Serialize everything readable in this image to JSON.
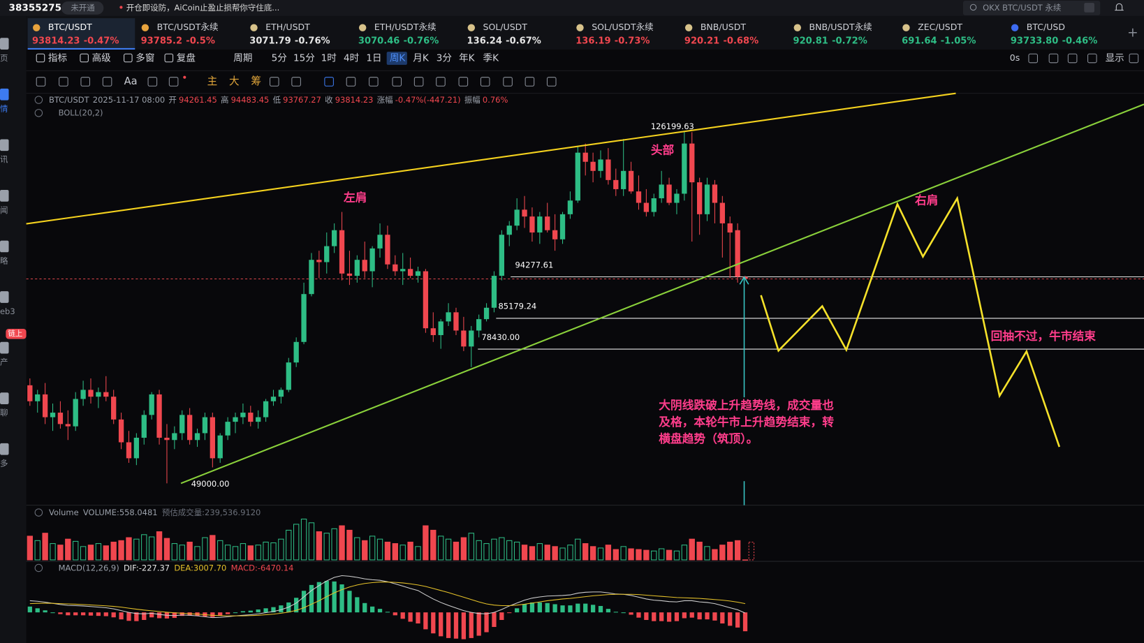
{
  "top_bar": {
    "account": "38355275",
    "badge": "未开通",
    "notice": "开仓即设防，AiCoin止盈止损帮你守住底...",
    "search": "OKX BTC/USDT 永续"
  },
  "tickers": [
    {
      "name": "BTC/USDT",
      "price": "93814.23",
      "change": "-0.47%",
      "color": "#f0474f",
      "icon_color": "#e8a33d"
    },
    {
      "name": "BTC/USDT永续",
      "price": "93785.2",
      "change": "-0.5%",
      "color": "#f0474f",
      "icon_color": "#e8a33d"
    },
    {
      "name": "ETH/USDT",
      "price": "3071.79",
      "change": "-0.76%",
      "color": "#e6e6e6",
      "icon_color": "#d7c28a"
    },
    {
      "name": "ETH/USDT永续",
      "price": "3070.46",
      "change": "-0.76%",
      "color": "#2ebd85",
      "icon_color": "#d7c28a"
    },
    {
      "name": "SOL/USDT",
      "price": "136.24",
      "change": "-0.67%",
      "color": "#e6e6e6",
      "icon_color": "#d7c28a"
    },
    {
      "name": "SOL/USDT永续",
      "price": "136.19",
      "change": "-0.73%",
      "color": "#f0474f",
      "icon_color": "#d7c28a"
    },
    {
      "name": "BNB/USDT",
      "price": "920.21",
      "change": "-0.68%",
      "color": "#f0474f",
      "icon_color": "#d7c28a"
    },
    {
      "name": "BNB/USDT永续",
      "price": "920.81",
      "change": "-0.72%",
      "color": "#2ebd85",
      "icon_color": "#d7c28a"
    },
    {
      "name": "ZEC/USDT",
      "price": "691.64",
      "change": "-1.05%",
      "color": "#2ebd85",
      "icon_color": "#d7c28a"
    },
    {
      "name": "BTC/USD",
      "price": "93733.80",
      "change": "-0.46%",
      "color": "#2ebd85",
      "icon_color": "#3d6bf0"
    }
  ],
  "toolbar": {
    "items": [
      "指标",
      "高级",
      "多窗",
      "复盘",
      "周期",
      "5分",
      "15分",
      "1时",
      "4时",
      "1日",
      "周K",
      "月K",
      "3分",
      "年K",
      "季K"
    ],
    "active": "周K",
    "right": [
      "0s",
      "显示"
    ]
  },
  "drawing_tools": [
    "Aa",
    "主",
    "大",
    "筹"
  ],
  "sidebar": [
    "页",
    "情",
    "讯",
    "闻",
    "略",
    "eb3",
    "产",
    "聊",
    "多"
  ],
  "sidebar_badge": "链上",
  "chart": {
    "type": "candlestick",
    "legend": {
      "symbol": "BTC/USDT",
      "time": "2025-11-17 08:00",
      "open_label": "开",
      "high_label": "高",
      "low_label": "低",
      "close_label": "收",
      "change_label": "涨幅",
      "change": "-0.47%(-447.21)",
      "amplitude_label": "振幅",
      "amplitude": "0.76%",
      "indicator": "BOLL(20,2)"
    },
    "up_color": "#2ebd85",
    "down_color": "#f0474f",
    "candles": [
      [
        70500,
        72000,
        66000,
        67000
      ],
      [
        67000,
        69500,
        64500,
        68500
      ],
      [
        68500,
        71000,
        62000,
        63500
      ],
      [
        63500,
        66500,
        60500,
        64500
      ],
      [
        64500,
        67000,
        61000,
        62000
      ],
      [
        62000,
        65000,
        58500,
        61500
      ],
      [
        61500,
        69000,
        60500,
        67500
      ],
      [
        67500,
        71500,
        66000,
        69500
      ],
      [
        69500,
        72000,
        66500,
        68000
      ],
      [
        68000,
        70000,
        65500,
        69000
      ],
      [
        69000,
        72500,
        67000,
        68000
      ],
      [
        68000,
        69500,
        62000,
        63000
      ],
      [
        63000,
        64500,
        56500,
        58000
      ],
      [
        58000,
        60500,
        53500,
        54500
      ],
      [
        54500,
        60000,
        53000,
        59000
      ],
      [
        59000,
        65000,
        57500,
        64000
      ],
      [
        64000,
        69000,
        63000,
        68500
      ],
      [
        68500,
        69500,
        57500,
        59000
      ],
      [
        59000,
        62000,
        49000,
        58500
      ],
      [
        58500,
        61500,
        56500,
        60000
      ],
      [
        60000,
        65000,
        58500,
        64000
      ],
      [
        64000,
        65500,
        57500,
        58500
      ],
      [
        58500,
        61000,
        57000,
        60000
      ],
      [
        60000,
        64500,
        58500,
        63500
      ],
      [
        63500,
        64500,
        52500,
        54500
      ],
      [
        54500,
        60000,
        53500,
        59500
      ],
      [
        59500,
        63500,
        58500,
        62500
      ],
      [
        62500,
        64500,
        60000,
        63500
      ],
      [
        63500,
        66500,
        62000,
        64500
      ],
      [
        64500,
        66000,
        61500,
        62500
      ],
      [
        62500,
        65000,
        61000,
        63500
      ],
      [
        63500,
        67500,
        62500,
        67000
      ],
      [
        67000,
        69500,
        66000,
        68000
      ],
      [
        68000,
        70000,
        66500,
        69500
      ],
      [
        69500,
        76500,
        69000,
        75500
      ],
      [
        75500,
        81000,
        74500,
        80000
      ],
      [
        80000,
        93000,
        79500,
        90500
      ],
      [
        90500,
        99500,
        90000,
        98000
      ],
      [
        98000,
        100000,
        94000,
        97500
      ],
      [
        97500,
        104000,
        95000,
        101000
      ],
      [
        101000,
        106000,
        99500,
        104500
      ],
      [
        104500,
        108500,
        93500,
        95000
      ],
      [
        95000,
        100000,
        92500,
        94500
      ],
      [
        94500,
        99000,
        93000,
        98000
      ],
      [
        98000,
        102000,
        94000,
        95500
      ],
      [
        95500,
        101000,
        92000,
        100500
      ],
      [
        100500,
        106000,
        98500,
        103500
      ],
      [
        103500,
        105500,
        96000,
        97000
      ],
      [
        97000,
        99000,
        94500,
        95500
      ],
      [
        95500,
        99500,
        92500,
        96000
      ],
      [
        96000,
        98500,
        94000,
        94500
      ],
      [
        94500,
        96500,
        93000,
        95500
      ],
      [
        95500,
        96000,
        82000,
        83000
      ],
      [
        83000,
        86500,
        80000,
        81500
      ],
      [
        81500,
        85000,
        78500,
        84500
      ],
      [
        84500,
        88500,
        83500,
        86500
      ],
      [
        86500,
        87500,
        81500,
        82500
      ],
      [
        82500,
        85500,
        78000,
        79000
      ],
      [
        79000,
        83500,
        74500,
        82500
      ],
      [
        82500,
        86000,
        81000,
        85000
      ],
      [
        85000,
        88500,
        84500,
        87500
      ],
      [
        87500,
        95500,
        86500,
        94500
      ],
      [
        94500,
        104500,
        93500,
        103500
      ],
      [
        103500,
        106500,
        101000,
        105500
      ],
      [
        105500,
        111500,
        104500,
        109000
      ],
      [
        109000,
        112000,
        105000,
        107500
      ],
      [
        107500,
        109500,
        102000,
        104000
      ],
      [
        104000,
        108500,
        101500,
        107500
      ],
      [
        107500,
        110500,
        104000,
        104500
      ],
      [
        104500,
        108000,
        100000,
        102500
      ],
      [
        102500,
        108500,
        101500,
        108000
      ],
      [
        108000,
        113000,
        107000,
        111000
      ],
      [
        111000,
        123000,
        110500,
        121500
      ],
      [
        121500,
        123500,
        116500,
        119500
      ],
      [
        119500,
        121500,
        115000,
        117500
      ],
      [
        117500,
        122000,
        116000,
        120000
      ],
      [
        120000,
        122500,
        114500,
        115500
      ],
      [
        115500,
        118000,
        112000,
        113500
      ],
      [
        113500,
        124500,
        112000,
        117500
      ],
      [
        117500,
        119500,
        112500,
        113000
      ],
      [
        113000,
        116500,
        109000,
        110500
      ],
      [
        110500,
        113500,
        107500,
        108500
      ],
      [
        108500,
        112500,
        107500,
        111500
      ],
      [
        111500,
        117500,
        110500,
        114500
      ],
      [
        114500,
        116000,
        110000,
        110500
      ],
      [
        110500,
        113500,
        108000,
        112500
      ],
      [
        112500,
        126199.63,
        111000,
        123500
      ],
      [
        123500,
        126000,
        102000,
        115000
      ],
      [
        115000,
        116000,
        103500,
        108000
      ],
      [
        108000,
        116000,
        106500,
        114500
      ],
      [
        114500,
        115500,
        106000,
        110500
      ],
      [
        110500,
        112000,
        98500,
        106000
      ],
      [
        106000,
        107500,
        94000,
        104000
      ],
      [
        104500,
        106000,
        93000,
        94300
      ],
      [
        94261.45,
        94483.45,
        93767.27,
        93814.23
      ]
    ],
    "levels": [
      {
        "value": 126199.63,
        "label": "126199.63"
      },
      {
        "value": 94277.61,
        "label": "94277.61"
      },
      {
        "value": 85179.24,
        "label": "85179.24"
      },
      {
        "value": 78430,
        "label": "78430.00"
      },
      {
        "value": 49000,
        "label": "49000.00"
      }
    ],
    "annotations": {
      "left_shoulder": "左肩",
      "head": "头部",
      "right_shoulder": "右肩",
      "conclusion": "回抽不过，牛市结束",
      "note": [
        "大阴线跌破上升趋势线，成交量也",
        "及格，本轮牛市上升趋势结束，转",
        "横盘趋势（筑顶）。"
      ]
    },
    "volume": {
      "title": "Volume",
      "label": "VOLUME:",
      "values": [
        320000,
        260000,
        360000,
        220000,
        200000,
        280000,
        250000,
        180000,
        200000,
        220000,
        190000,
        240000,
        260000,
        300000,
        280000,
        340000,
        310000,
        380000,
        290000,
        220000,
        200000,
        240000,
        180000,
        300000,
        330000,
        260000,
        200000,
        180000,
        220000,
        190000,
        200000,
        240000,
        230000,
        280000,
        400000,
        480000,
        550000,
        500000,
        380000,
        360000,
        420000,
        460000,
        400000,
        300000,
        260000,
        320000,
        280000,
        240000,
        220000,
        200000,
        240000,
        180000,
        460000,
        400000,
        320000,
        280000,
        240000,
        300000,
        360000,
        260000,
        220000,
        280000,
        300000,
        260000,
        240000,
        200000,
        180000,
        220000,
        200000,
        180000,
        160000,
        200000,
        280000,
        220000,
        180000,
        160000,
        200000,
        140000,
        180000,
        150000,
        140000,
        130000,
        120000,
        150000,
        130000,
        120000,
        200000,
        280000,
        240000,
        180000,
        140000,
        200000,
        240000,
        260000,
        558.0481
      ],
      "forecast_label": "预估成交量:",
      "forecast": {
        "value": 239536.912,
        "label": "239,536.9120"
      }
    },
    "macd": {
      "title": "MACD(12,26,9)",
      "dif_label": "DIF:",
      "dea_label": "DEA:",
      "hist_label": "MACD:",
      "dif_color": "#d0d0d0",
      "dea_color": "#e6c229",
      "dif": [
        4000,
        3800,
        3500,
        3100,
        2700,
        2400,
        2300,
        2200,
        2000,
        1800,
        1600,
        1200,
        600,
        0,
        -400,
        -500,
        -300,
        -700,
        -1000,
        -1100,
        -900,
        -1000,
        -1200,
        -1500,
        -1800,
        -1700,
        -1500,
        -1200,
        -1000,
        -800,
        -500,
        -100,
        300,
        900,
        1800,
        3200,
        5300,
        7500,
        9200,
        10800,
        12000,
        12600,
        12400,
        12000,
        11500,
        11200,
        11000,
        10500,
        9800,
        9000,
        8200,
        7500,
        6000,
        4600,
        3400,
        2400,
        1500,
        600,
        0,
        -400,
        -500,
        0,
        1000,
        2200,
        3200,
        4200,
        4900,
        5300,
        5600,
        5700,
        5800,
        6000,
        6600,
        6900,
        7000,
        7000,
        6700,
        6300,
        6200,
        5800,
        5200,
        4600,
        4200,
        4000,
        3700,
        3600,
        4000,
        4000,
        3600,
        3400,
        3000,
        2300,
        1600,
        900,
        -227.37
      ],
      "dea": [
        3000,
        3100,
        3150,
        3100,
        3000,
        2900,
        2800,
        2700,
        2550,
        2400,
        2250,
        2050,
        1800,
        1450,
        1100,
        800,
        550,
        300,
        50,
        -150,
        -300,
        -450,
        -600,
        -800,
        -1000,
        -1100,
        -1200,
        -1200,
        -1200,
        -1100,
        -1000,
        -800,
        -600,
        -300,
        100,
        700,
        1600,
        2800,
        4000,
        5400,
        6700,
        7800,
        8700,
        9400,
        9900,
        10200,
        10400,
        10400,
        10300,
        10100,
        9800,
        9400,
        8900,
        8200,
        7500,
        6800,
        6000,
        5200,
        4400,
        3600,
        2900,
        2500,
        2300,
        2300,
        2500,
        2800,
        3200,
        3600,
        4000,
        4300,
        4600,
        4800,
        5100,
        5400,
        5700,
        5900,
        6100,
        6200,
        6200,
        6200,
        6100,
        5900,
        5700,
        5500,
        5300,
        5100,
        5000,
        4900,
        4800,
        4600,
        4400,
        4200,
        3900,
        3500,
        3007.7
      ],
      "hist": [
        2000,
        1400,
        700,
        0,
        -600,
        -1000,
        -1000,
        -1000,
        -1100,
        -1200,
        -1300,
        -1700,
        -2400,
        -2900,
        -3000,
        -2600,
        -1700,
        -2000,
        -2100,
        -1900,
        -1200,
        -1100,
        -1200,
        -1400,
        -1600,
        -1200,
        -600,
        0,
        400,
        600,
        1000,
        1400,
        1800,
        2400,
        3400,
        5000,
        7400,
        9400,
        10400,
        10800,
        10600,
        9600,
        7400,
        5200,
        3200,
        2000,
        1200,
        200,
        -1000,
        -2200,
        -3200,
        -3800,
        -5800,
        -7200,
        -8200,
        -8800,
        -9000,
        -9200,
        -8800,
        -8000,
        -6800,
        -5000,
        -2600,
        -200,
        1400,
        2800,
        3400,
        3400,
        3200,
        2800,
        2400,
        2400,
        3000,
        3000,
        2600,
        2200,
        1200,
        200,
        0,
        -800,
        -1800,
        -2600,
        -3000,
        -3000,
        -3200,
        -3000,
        -2000,
        -1800,
        -2400,
        -2400,
        -2800,
        -3800,
        -4600,
        -5200,
        -6470.14
      ],
      "value_labels": {
        "dif": "-227.37",
        "dea": "3007.70",
        "hist": "-6470.14"
      }
    }
  }
}
